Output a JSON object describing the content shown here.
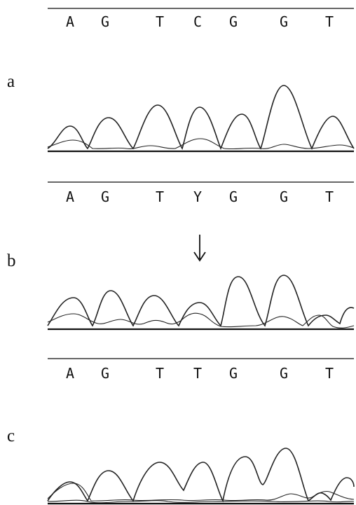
{
  "panels": [
    {
      "label": "a",
      "sequence": [
        "A",
        "G",
        "T",
        "C",
        "G",
        "G",
        "T"
      ],
      "arrow": false
    },
    {
      "label": "b",
      "sequence": [
        "A",
        "G",
        "T",
        "Y",
        "G",
        "G",
        "T"
      ],
      "arrow": true
    },
    {
      "label": "c",
      "sequence": [
        "A",
        "G",
        "T",
        "T",
        "G",
        "G",
        "T"
      ],
      "arrow": false
    }
  ],
  "arrow_icon": "down-arrow-icon"
}
